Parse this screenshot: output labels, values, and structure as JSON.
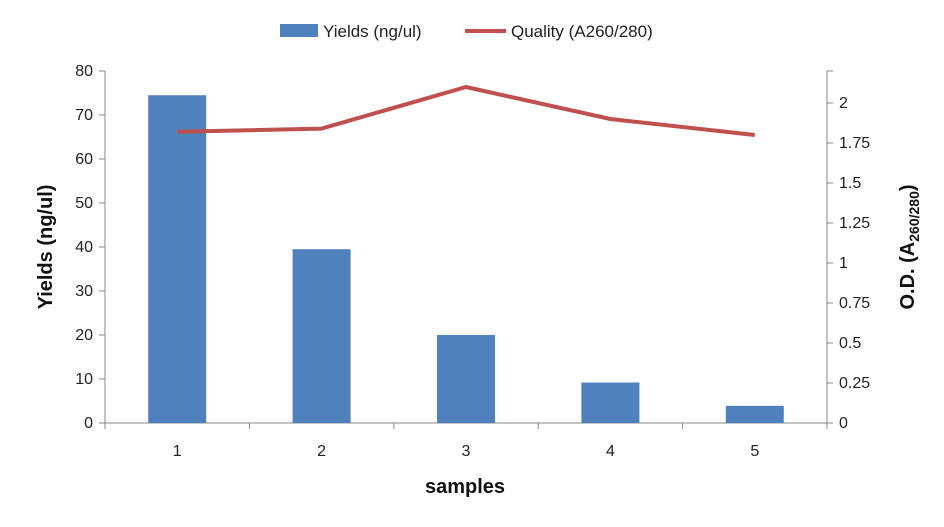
{
  "chart_data": {
    "type": "bar+line",
    "categories": [
      "1",
      "2",
      "3",
      "4",
      "5"
    ],
    "xlabel": "samples",
    "series": [
      {
        "name": "Yields (ng/ul)",
        "kind": "bar",
        "axis": "left",
        "color": "#4F81BD",
        "values": [
          74.5,
          39.5,
          20.0,
          9.2,
          3.9
        ]
      },
      {
        "name": "Quality (A260/280)",
        "kind": "line",
        "axis": "right",
        "color": "#C0504D",
        "values": [
          1.82,
          1.84,
          2.1,
          1.9,
          1.8
        ]
      }
    ],
    "y_left": {
      "label": "Yields (ng/ul)",
      "range": [
        0,
        80
      ],
      "ticks": [
        "0",
        "10",
        "20",
        "30",
        "40",
        "50",
        "60",
        "70",
        "80"
      ]
    },
    "y_right": {
      "label_main": "O.D. (A",
      "label_sub": "260/280",
      "label_close": ")",
      "range": [
        0,
        2.2
      ],
      "ticks": [
        "0",
        "0.25",
        "0.5",
        "0.75",
        "1",
        "1.25",
        "1.5",
        "1.75",
        "2"
      ]
    },
    "grid": false,
    "legend_position": "top"
  }
}
